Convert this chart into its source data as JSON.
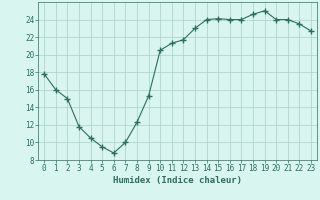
{
  "x": [
    0,
    1,
    2,
    3,
    4,
    5,
    6,
    7,
    8,
    9,
    10,
    11,
    12,
    13,
    14,
    15,
    16,
    17,
    18,
    19,
    20,
    21,
    22,
    23
  ],
  "y": [
    17.8,
    16.0,
    15.0,
    11.8,
    10.5,
    9.5,
    8.8,
    10.0,
    12.3,
    15.3,
    20.5,
    21.3,
    21.7,
    23.0,
    24.0,
    24.1,
    24.0,
    24.0,
    24.6,
    25.0,
    24.0,
    24.0,
    23.5,
    22.7
  ],
  "line_color": "#2d6e5e",
  "marker": "+",
  "marker_size": 4,
  "bg_color": "#d8f5f0",
  "grid_color": "#aacfca",
  "xlabel": "Humidex (Indice chaleur)",
  "ylim": [
    8,
    26
  ],
  "xlim": [
    -0.5,
    23.5
  ],
  "yticks": [
    8,
    10,
    12,
    14,
    16,
    18,
    20,
    22,
    24
  ],
  "xticks": [
    0,
    1,
    2,
    3,
    4,
    5,
    6,
    7,
    8,
    9,
    10,
    11,
    12,
    13,
    14,
    15,
    16,
    17,
    18,
    19,
    20,
    21,
    22,
    23
  ],
  "tick_color": "#2d6e5e",
  "label_fontsize": 6.5,
  "tick_fontsize": 5.5,
  "linewidth": 0.8,
  "marker_linewidth": 1.0
}
